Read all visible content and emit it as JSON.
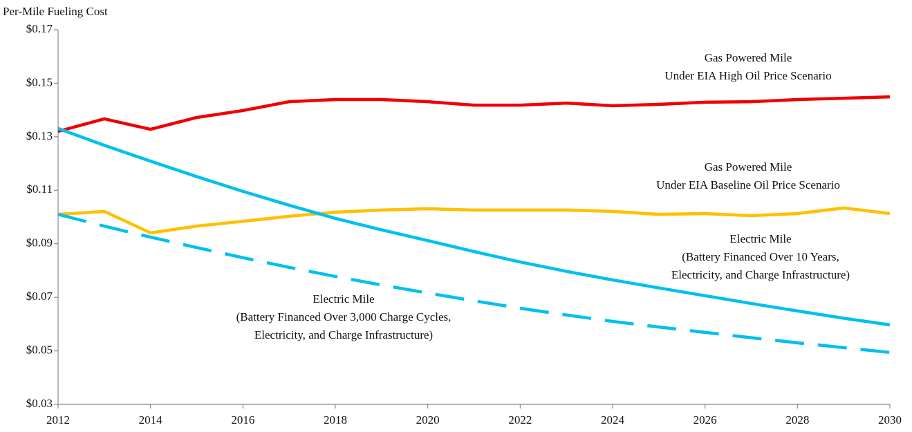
{
  "chart_data": {
    "type": "line",
    "y_axis_label": "Per-Mile Fueling Cost",
    "x": [
      2012,
      2013,
      2014,
      2015,
      2016,
      2017,
      2018,
      2019,
      2020,
      2021,
      2022,
      2023,
      2024,
      2025,
      2026,
      2027,
      2028,
      2029,
      2030
    ],
    "xlim": [
      2012,
      2030
    ],
    "xticks": [
      2012,
      2014,
      2016,
      2018,
      2020,
      2022,
      2024,
      2026,
      2028,
      2030
    ],
    "ylim": [
      0.03,
      0.17
    ],
    "yticks": [
      {
        "value": 0.03,
        "label": "$0.03"
      },
      {
        "value": 0.05,
        "label": "$0.05"
      },
      {
        "value": 0.07,
        "label": "$0.07"
      },
      {
        "value": 0.09,
        "label": "$0.09"
      },
      {
        "value": 0.11,
        "label": "$0.11"
      },
      {
        "value": 0.13,
        "label": "$0.13"
      },
      {
        "value": 0.15,
        "label": "$0.15"
      },
      {
        "value": 0.17,
        "label": "$0.17"
      }
    ],
    "series": [
      {
        "label": [
          "Gas Powered Mile",
          "Under EIA High Oil Price Scenario"
        ],
        "color": "#f00000",
        "dashed": false,
        "values": [
          0.132,
          0.1367,
          0.1328,
          0.1372,
          0.1398,
          0.1431,
          0.1439,
          0.1439,
          0.1431,
          0.1418,
          0.1418,
          0.1426,
          0.1416,
          0.1421,
          0.1429,
          0.1431,
          0.1439,
          0.1444,
          0.1449
        ]
      },
      {
        "label": [
          "Gas Powered Mile",
          "Under EIA Baseline Oil Price Scenario"
        ],
        "color": "#ffc000",
        "dashed": false,
        "values": [
          0.101,
          0.1021,
          0.0941,
          0.0966,
          0.0984,
          0.1003,
          0.1018,
          0.1026,
          0.1031,
          0.1026,
          0.1026,
          0.1026,
          0.1021,
          0.101,
          0.1013,
          0.1005,
          0.1013,
          0.1034,
          0.1013
        ]
      },
      {
        "label": [
          "Electric Mile",
          "(Battery Financed Over 10 Years,",
          "Electricity, and Charge Infrastructure)"
        ],
        "color": "#00c0f0",
        "dashed": false,
        "values": [
          0.1331,
          0.1268,
          0.1209,
          0.1151,
          0.1096,
          0.1044,
          0.0995,
          0.0952,
          0.0912,
          0.0871,
          0.0832,
          0.0797,
          0.0765,
          0.0735,
          0.0706,
          0.0677,
          0.0649,
          0.0622,
          0.0597
        ]
      },
      {
        "label": [
          "Electric Mile",
          "(Battery Financed Over 3,000 Charge Cycles,",
          "Electricity, and Charge Infrastructure)"
        ],
        "color": "#00c0f0",
        "dashed": true,
        "values": [
          0.101,
          0.0966,
          0.0925,
          0.0886,
          0.0848,
          0.0812,
          0.0778,
          0.0746,
          0.0716,
          0.0687,
          0.0659,
          0.0634,
          0.061,
          0.0589,
          0.0569,
          0.0549,
          0.053,
          0.0512,
          0.0494
        ]
      }
    ]
  }
}
